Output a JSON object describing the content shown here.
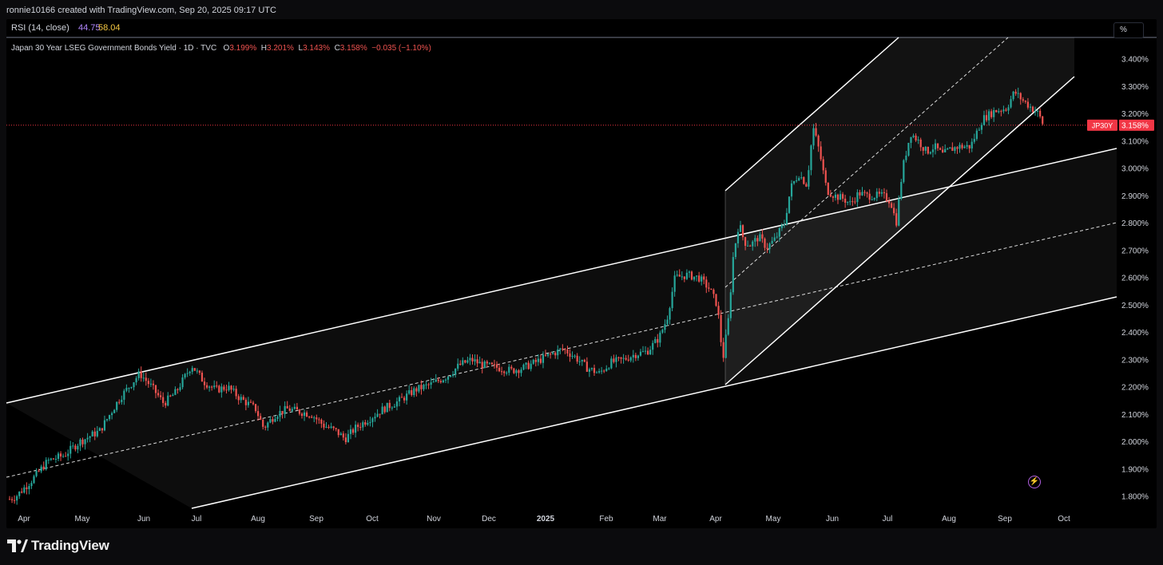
{
  "header": {
    "credit": "ronnie10166 created with TradingView.com, Sep 20, 2025 09:17 UTC"
  },
  "rsi": {
    "label": "RSI (14, close)",
    "value1": "44.75",
    "value2": "58.04",
    "color1": "#b388ff",
    "color2": "#f5c842"
  },
  "legend": {
    "symbol": "Japan 30 Year LSEG Government Bonds Yield · 1D · TVC",
    "o_label": "O",
    "o_value": "3.199%",
    "h_label": "H",
    "h_value": "3.201%",
    "l_label": "L",
    "l_value": "3.143%",
    "c_label": "C",
    "c_value": "3.158%",
    "change": "−0.035 (−1.10%)"
  },
  "scale_button": "%",
  "price_tag": {
    "ticker": "JP30Y",
    "value": "3.158%"
  },
  "colors": {
    "up": "#26a69a",
    "down": "#ef5350",
    "channel": "#ffffff",
    "last_price": "#f23645"
  },
  "icons": {
    "alert": "lightning-icon",
    "logo": "tradingview-logo-icon"
  },
  "footer": {
    "brand": "TradingView"
  },
  "chart_data": {
    "type": "candlestick",
    "title": "Japan 30 Year LSEG Government Bonds Yield · 1D · TVC",
    "ylabel": "%",
    "ylim": [
      1.75,
      3.45
    ],
    "yticks": [
      "3.400%",
      "3.300%",
      "3.200%",
      "3.100%",
      "3.000%",
      "2.900%",
      "2.800%",
      "2.700%",
      "2.600%",
      "2.500%",
      "2.400%",
      "2.300%",
      "2.200%",
      "2.100%",
      "2.000%",
      "1.900%",
      "1.800%"
    ],
    "x_labels": [
      "Apr",
      "May",
      "Jun",
      "Jul",
      "Aug",
      "Sep",
      "Oct",
      "Nov",
      "Dec",
      "2025",
      "Feb",
      "Mar",
      "Apr",
      "May",
      "Jun",
      "Jul",
      "Aug",
      "Sep",
      "Oct"
    ],
    "last_price": 3.158,
    "approx_closes": [
      {
        "period": "Apr 2024",
        "close": 1.8
      },
      {
        "period": "May 2024",
        "close": 1.98
      },
      {
        "period": "Jun 2024",
        "close": 2.24
      },
      {
        "period": "Jul 2024",
        "close": 2.18
      },
      {
        "period": "Aug 2024",
        "close": 2.04
      },
      {
        "period": "Sep 2024",
        "close": 2.08
      },
      {
        "period": "Oct 2024",
        "close": 2.06
      },
      {
        "period": "Nov 2024",
        "close": 2.2
      },
      {
        "period": "Dec 2024",
        "close": 2.29
      },
      {
        "period": "Jan 2025",
        "close": 2.33
      },
      {
        "period": "Feb 2025",
        "close": 2.27
      },
      {
        "period": "Mar 2025",
        "close": 2.42
      },
      {
        "period": "Apr 2025",
        "close": 2.6
      },
      {
        "period": "May 2025",
        "close": 2.86
      },
      {
        "period": "Jun 2025",
        "close": 2.92
      },
      {
        "period": "Jul 2025",
        "close": 3.02
      },
      {
        "period": "Aug 2025",
        "close": 3.08
      },
      {
        "period": "Sep 2025",
        "close": 3.158
      }
    ],
    "markers": [
      {
        "label": "Mar 2025 high",
        "value": 2.62
      },
      {
        "label": "Apr 2025 low",
        "value": 2.21
      },
      {
        "label": "May 2025 high",
        "value": 3.2
      },
      {
        "label": "Sep 2025 high",
        "value": 3.3
      }
    ]
  }
}
